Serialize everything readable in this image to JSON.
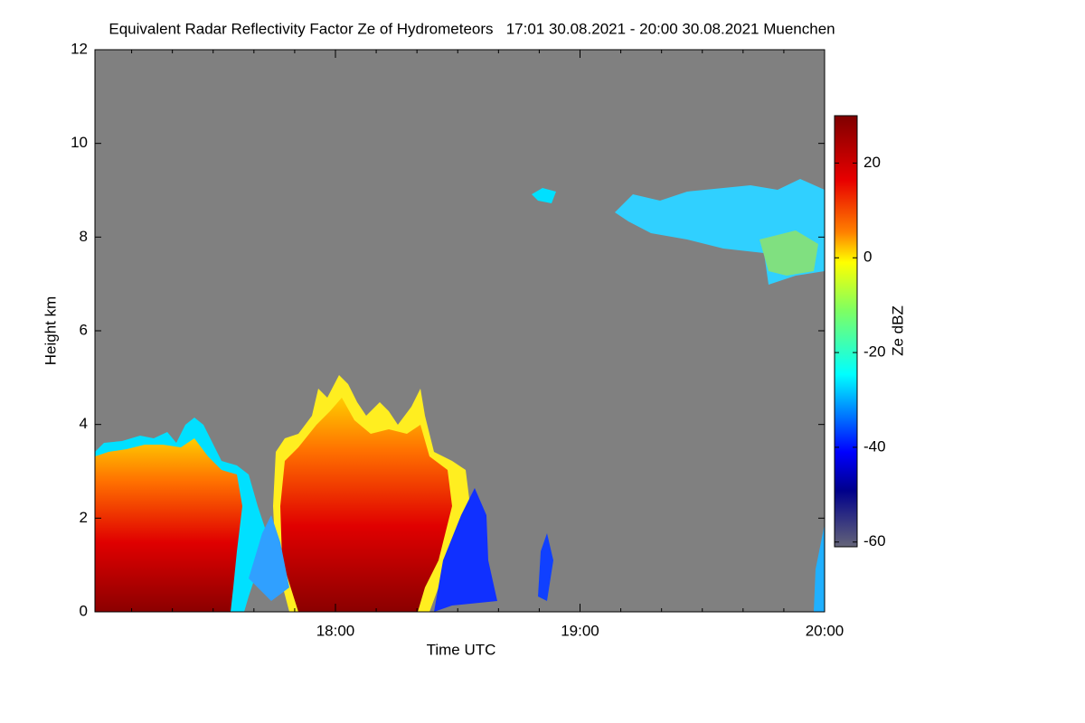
{
  "chart_data": {
    "type": "heatmap",
    "title": "Equivalent Radar Reflectivity Factor Ze of Hydrometeors   17:01 30.08.2021 - 20:00 30.08.2021 Muenchen",
    "xlabel": "Time UTC",
    "ylabel": "Height km",
    "xlim": [
      1021,
      1200
    ],
    "xticks": [
      {
        "value": 1080,
        "label": "18:00"
      },
      {
        "value": 1140,
        "label": "19:00"
      },
      {
        "value": 1200,
        "label": "20:00"
      }
    ],
    "xminorticks": [
      1030,
      1040,
      1050,
      1060,
      1070,
      1090,
      1100,
      1110,
      1120,
      1130,
      1150,
      1160,
      1170,
      1180,
      1190
    ],
    "ylim": [
      0,
      12
    ],
    "yticks": [
      0,
      2,
      4,
      6,
      8,
      10,
      12
    ],
    "background": "#808080",
    "colorbar": {
      "label": "Ze dBZ",
      "lim": [
        -61,
        30
      ],
      "ticks": [
        20,
        0,
        -20,
        -40,
        -60
      ]
    }
  }
}
